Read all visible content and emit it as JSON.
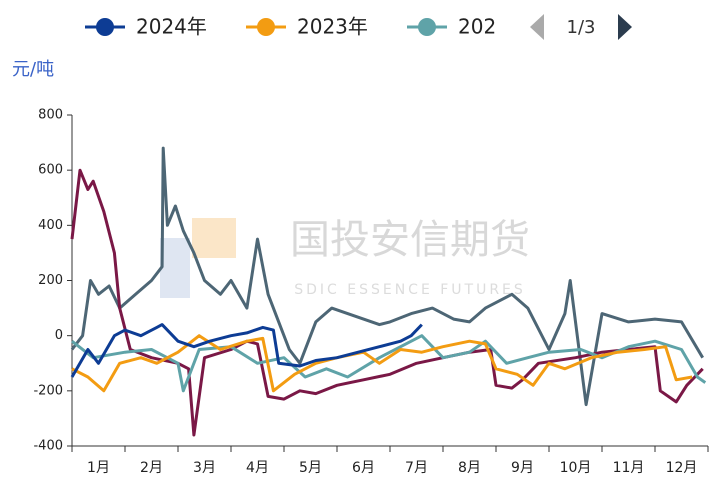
{
  "chart_data": {
    "type": "line",
    "y_unit": "元/吨",
    "legend_page": "1/3",
    "watermark": {
      "title": "国投安信期货",
      "subtitle": "SDIC ESSENCE FUTURES"
    },
    "categories": [
      "1月",
      "2月",
      "3月",
      "4月",
      "5月",
      "6月",
      "7月",
      "8月",
      "9月",
      "10月",
      "11月",
      "12月"
    ],
    "xlim": [
      0,
      12
    ],
    "ylim": [
      -400,
      800
    ],
    "yticks": [
      -400,
      -200,
      0,
      200,
      400,
      600,
      800
    ],
    "series": [
      {
        "name": "2024年",
        "color": "#0d3c94",
        "x": [
          0,
          0.3,
          0.5,
          0.8,
          1.0,
          1.3,
          1.6,
          1.7,
          2.0,
          2.3,
          2.6,
          3.0,
          3.3,
          3.6,
          3.8,
          3.9,
          4.3,
          4.6,
          5.0,
          5.4,
          5.8,
          6.2,
          6.4,
          6.6
        ],
        "values": [
          -150,
          -50,
          -100,
          0,
          20,
          0,
          30,
          40,
          -20,
          -40,
          -20,
          0,
          10,
          30,
          20,
          -100,
          -110,
          -90,
          -80,
          -60,
          -40,
          -20,
          0,
          40
        ]
      },
      {
        "name": "2023年",
        "color": "#f39c12",
        "x": [
          0,
          0.3,
          0.6,
          0.9,
          1.3,
          1.6,
          2.0,
          2.4,
          2.8,
          3.3,
          3.6,
          3.8,
          4.2,
          4.6,
          5.0,
          5.5,
          5.8,
          6.2,
          6.6,
          7.0,
          7.5,
          7.8,
          8.0,
          8.4,
          8.7,
          9.0,
          9.3,
          9.8,
          10.3,
          10.8,
          11.2,
          11.4,
          11.7
        ],
        "values": [
          -120,
          -150,
          -200,
          -100,
          -80,
          -100,
          -60,
          0,
          -50,
          -20,
          -10,
          -200,
          -140,
          -100,
          -80,
          -60,
          -100,
          -50,
          -60,
          -40,
          -20,
          -30,
          -120,
          -140,
          -180,
          -100,
          -120,
          -80,
          -60,
          -50,
          -40,
          -160,
          -150
        ]
      },
      {
        "name": "202",
        "color": "#5fa3a8",
        "x": [
          0,
          0.4,
          1.0,
          1.5,
          2.0,
          2.1,
          2.4,
          3.0,
          3.5,
          4.0,
          4.4,
          4.8,
          5.2,
          5.8,
          6.3,
          6.6,
          7.0,
          7.5,
          7.8,
          8.2,
          8.6,
          9.0,
          9.6,
          10.0,
          10.5,
          11.0,
          11.5,
          11.8,
          11.95
        ],
        "values": [
          -20,
          -80,
          -60,
          -50,
          -100,
          -200,
          -50,
          -40,
          -100,
          -80,
          -150,
          -120,
          -150,
          -80,
          -30,
          0,
          -80,
          -60,
          -20,
          -100,
          -80,
          -60,
          -50,
          -80,
          -40,
          -20,
          -50,
          -150,
          -170
        ]
      },
      {
        "color": "#7a1846",
        "x": [
          0,
          0.15,
          0.3,
          0.4,
          0.6,
          0.8,
          0.9,
          1.1,
          1.5,
          2.0,
          2.2,
          2.3,
          2.5,
          3.0,
          3.3,
          3.5,
          3.7,
          4.0,
          4.3,
          4.6,
          5.0,
          5.5,
          6.0,
          6.5,
          7.0,
          7.5,
          7.9,
          8.0,
          8.3,
          8.5,
          8.8,
          9.5,
          10.0,
          10.5,
          11.0,
          11.1,
          11.4,
          11.6,
          11.9
        ],
        "values": [
          350,
          600,
          530,
          560,
          450,
          300,
          100,
          -50,
          -80,
          -100,
          -120,
          -360,
          -80,
          -50,
          -20,
          -30,
          -220,
          -230,
          -200,
          -210,
          -180,
          -160,
          -140,
          -100,
          -80,
          -60,
          -50,
          -180,
          -190,
          -160,
          -100,
          -80,
          -60,
          -50,
          -40,
          -200,
          -240,
          -180,
          -120
        ]
      },
      {
        "color": "#4d6675",
        "x": [
          0,
          0.2,
          0.35,
          0.5,
          0.7,
          0.9,
          1.2,
          1.5,
          1.7,
          1.72,
          1.8,
          1.95,
          2.1,
          2.3,
          2.5,
          2.8,
          3.0,
          3.3,
          3.5,
          3.7,
          3.9,
          4.1,
          4.3,
          4.6,
          4.9,
          5.2,
          5.5,
          5.8,
          6.0,
          6.4,
          6.8,
          7.2,
          7.5,
          7.8,
          8.0,
          8.3,
          8.6,
          9.0,
          9.3,
          9.4,
          9.7,
          10.0,
          10.5,
          11.0,
          11.5,
          11.9
        ],
        "values": [
          -50,
          0,
          200,
          150,
          180,
          100,
          150,
          200,
          250,
          680,
          400,
          470,
          380,
          300,
          200,
          150,
          200,
          100,
          350,
          150,
          50,
          -50,
          -100,
          50,
          100,
          80,
          60,
          40,
          50,
          80,
          100,
          60,
          50,
          100,
          120,
          150,
          100,
          -50,
          80,
          200,
          -250,
          80,
          50,
          60,
          50,
          -80
        ]
      }
    ]
  }
}
